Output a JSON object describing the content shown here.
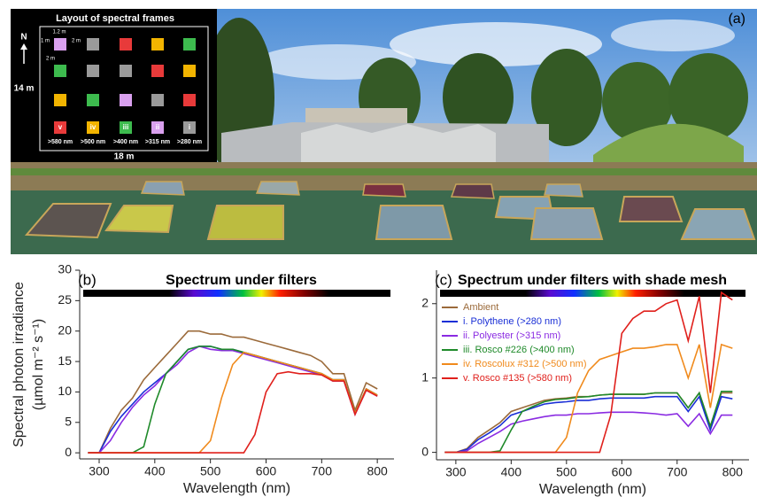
{
  "panel_a": {
    "label": "(a)",
    "inset": {
      "title": "Layout of spectral frames",
      "north": "N",
      "height": "14 m",
      "width": "18 m",
      "dims": [
        "1.2 m",
        "1 m",
        "2 m",
        "2 m"
      ],
      "frames": [
        {
          "numeral": "v",
          "label": ">580 nm"
        },
        {
          "numeral": "iv",
          "label": ">500 nm"
        },
        {
          "numeral": "iii",
          "label": ">400 nm"
        },
        {
          "numeral": "ii",
          "label": ">315 nm"
        },
        {
          "numeral": "i",
          "label": ">280 nm"
        }
      ]
    }
  },
  "chart_data": [
    {
      "type": "line",
      "panel_label": "(b)",
      "title": "Spectrum under filters",
      "y_label": [
        "Spectral photon irradiance",
        "(µmol m⁻² s⁻¹)"
      ],
      "x_label": "Wavelength (nm)",
      "x": [
        280,
        300,
        320,
        340,
        360,
        380,
        400,
        420,
        440,
        460,
        480,
        500,
        520,
        540,
        560,
        580,
        600,
        620,
        640,
        660,
        680,
        700,
        720,
        740,
        760,
        780,
        800
      ],
      "xlim": [
        265,
        830
      ],
      "xticks": [
        300,
        400,
        500,
        600,
        700,
        800
      ],
      "ylim": [
        -1,
        30
      ],
      "yticks": [
        0,
        5,
        10,
        15,
        20,
        25,
        30
      ],
      "series": [
        {
          "color": "#9b6a3a",
          "values": [
            0,
            0,
            4,
            7,
            9,
            12,
            14,
            16,
            18,
            20,
            20,
            19.5,
            19.5,
            19,
            19,
            18.5,
            18,
            17.5,
            17,
            16.5,
            16,
            15,
            13,
            13,
            7,
            11.5,
            10.5
          ]
        },
        {
          "color": "#1a2fd6",
          "values": [
            0,
            0,
            3.5,
            6,
            8,
            10,
            11.5,
            13,
            15,
            17,
            17.5,
            17.5,
            17,
            17,
            16.5,
            16,
            15.5,
            15,
            14.5,
            14,
            13.5,
            13,
            12,
            12,
            6.5,
            10.5,
            9.5
          ]
        },
        {
          "color": "#8a2be2",
          "values": [
            0,
            0,
            2,
            5,
            7.5,
            9.5,
            11,
            13,
            14.5,
            16.5,
            17.5,
            17,
            16.8,
            16.8,
            16.3,
            15.8,
            15.3,
            14.8,
            14.3,
            13.8,
            13.3,
            12.8,
            11.8,
            11.8,
            6.3,
            10.3,
            9.3
          ]
        },
        {
          "color": "#1f8a2a",
          "values": [
            0,
            0,
            0,
            0,
            0,
            1,
            8,
            13,
            15,
            17,
            17.5,
            17.5,
            17,
            17,
            16.5,
            16,
            15.5,
            15,
            14.5,
            14,
            13.5,
            13,
            12,
            12,
            6.5,
            10.5,
            9.5
          ]
        },
        {
          "color": "#f08a1c",
          "values": [
            0,
            0,
            0,
            0,
            0,
            0,
            0,
            0,
            0,
            0,
            0,
            2,
            9,
            14.5,
            16.5,
            16,
            15.5,
            15,
            14.5,
            14,
            13.5,
            13,
            12,
            12,
            6.5,
            10.5,
            9.5
          ]
        },
        {
          "color": "#e0201c",
          "values": [
            0,
            0,
            0,
            0,
            0,
            0,
            0,
            0,
            0,
            0,
            0,
            0,
            0,
            0,
            0,
            3,
            10,
            13,
            13.3,
            13,
            13,
            12.8,
            11.8,
            11.8,
            6.3,
            10.3,
            9.3
          ]
        }
      ]
    },
    {
      "type": "line",
      "panel_label": "(c)",
      "title": "Spectrum under filters with shade mesh",
      "x_label": "Wavelength (nm)",
      "legend": "upper left",
      "x": [
        280,
        300,
        320,
        340,
        360,
        380,
        400,
        420,
        440,
        460,
        480,
        500,
        520,
        540,
        560,
        580,
        600,
        620,
        640,
        660,
        680,
        700,
        720,
        740,
        760,
        780,
        800
      ],
      "xlim": [
        265,
        830
      ],
      "xticks": [
        300,
        400,
        500,
        600,
        700,
        800
      ],
      "ylim": [
        -0.1,
        2.45
      ],
      "yticks": [
        0,
        1,
        2
      ],
      "series": [
        {
          "name": "Ambient",
          "color": "#9b6a3a",
          "values": [
            0,
            0,
            0.05,
            0.2,
            0.3,
            0.4,
            0.55,
            0.6,
            0.65,
            0.7,
            0.72,
            0.73,
            0.75,
            0.75,
            0.77,
            0.78,
            0.78,
            0.78,
            0.78,
            0.8,
            0.8,
            0.8,
            0.6,
            0.8,
            0.35,
            0.8,
            0.8
          ]
        },
        {
          "name": "i.  Polythene (>280 nm)",
          "color": "#1a2fd6",
          "values": [
            0,
            0,
            0.04,
            0.17,
            0.26,
            0.36,
            0.5,
            0.55,
            0.6,
            0.65,
            0.67,
            0.68,
            0.7,
            0.7,
            0.72,
            0.73,
            0.73,
            0.73,
            0.73,
            0.75,
            0.75,
            0.75,
            0.55,
            0.75,
            0.3,
            0.75,
            0.72
          ]
        },
        {
          "name": "ii.  Polyester (>315 nm)",
          "color": "#8a2be2",
          "values": [
            0,
            0,
            0.02,
            0.12,
            0.2,
            0.28,
            0.38,
            0.42,
            0.45,
            0.48,
            0.5,
            0.5,
            0.52,
            0.52,
            0.53,
            0.54,
            0.54,
            0.54,
            0.53,
            0.52,
            0.5,
            0.52,
            0.35,
            0.52,
            0.25,
            0.5,
            0.5
          ]
        },
        {
          "name": "iii.  Rosco #226 (>400 nm)",
          "color": "#1f8a2a",
          "values": [
            0,
            0,
            0,
            0,
            0,
            0.02,
            0.3,
            0.55,
            0.62,
            0.68,
            0.71,
            0.72,
            0.74,
            0.75,
            0.77,
            0.78,
            0.78,
            0.78,
            0.78,
            0.8,
            0.8,
            0.8,
            0.6,
            0.8,
            0.35,
            0.82,
            0.82
          ]
        },
        {
          "name": "iv.  Roscolux #312 (>500 nm)",
          "color": "#f08a1c",
          "values": [
            0,
            0,
            0,
            0,
            0,
            0,
            0,
            0,
            0,
            0,
            0,
            0.2,
            0.8,
            1.1,
            1.25,
            1.3,
            1.35,
            1.4,
            1.4,
            1.42,
            1.45,
            1.45,
            1.0,
            1.45,
            0.6,
            1.45,
            1.4
          ]
        },
        {
          "name": "v.  Rosco #135 (>580 nm)",
          "color": "#e0201c",
          "values": [
            0,
            0,
            0,
            0,
            0,
            0,
            0,
            0,
            0,
            0,
            0,
            0,
            0,
            0,
            0,
            0.5,
            1.6,
            1.8,
            1.9,
            1.9,
            2.0,
            2.05,
            1.5,
            2.1,
            0.8,
            2.15,
            2.05
          ]
        }
      ]
    }
  ]
}
